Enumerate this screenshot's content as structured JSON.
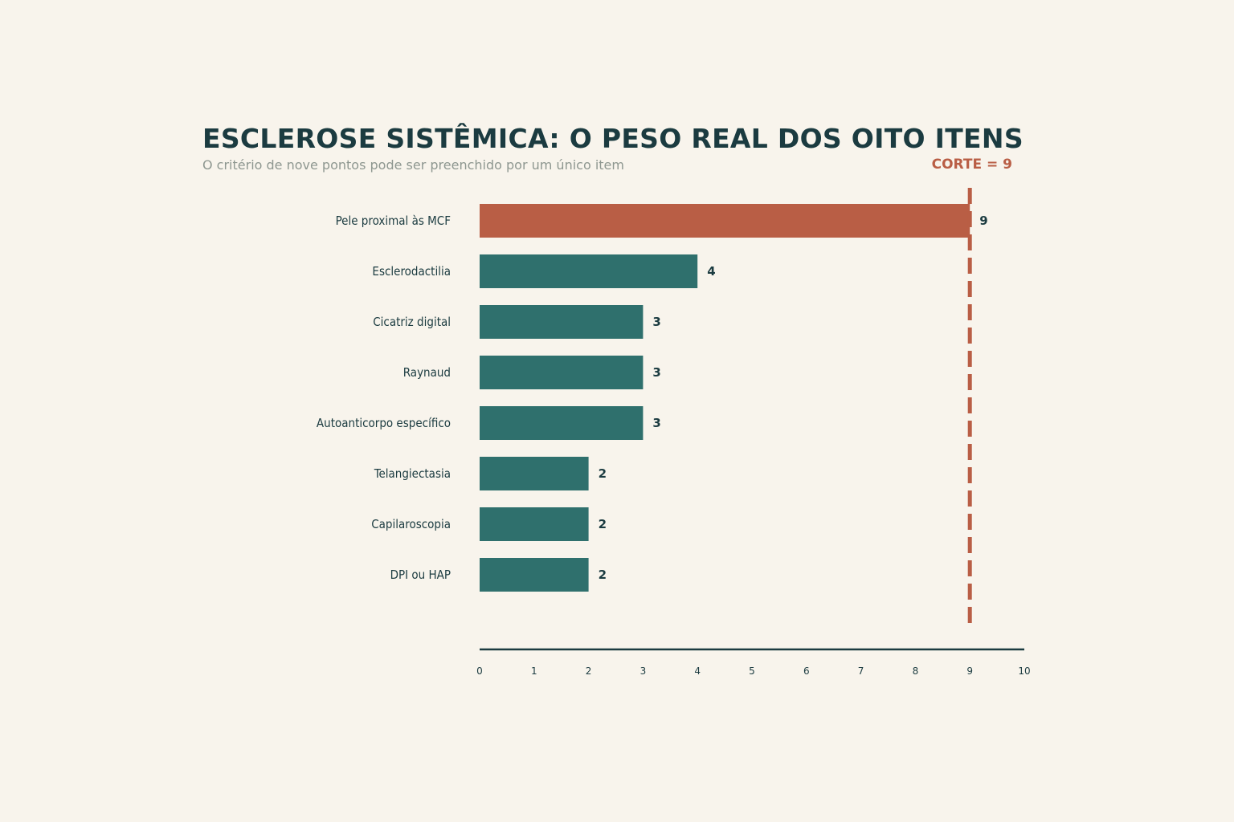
{
  "title": "ESCLEROSE SISTÊMICA: O PESO REAL DOS OITO ITENS",
  "subtitle": "O critério de nove pontos pode ser preenchido por um único item",
  "colors": {
    "background": "#f8f4ec",
    "highlight_bar": "#b95e45",
    "bar": "#2f706d",
    "text_dark": "#1b3b40",
    "subtitle": "#8e9790",
    "cutoff": "#b95e45"
  },
  "chart_data": {
    "type": "bar",
    "orientation": "horizontal",
    "title": "ESCLEROSE SISTÊMICA: O PESO REAL DOS OITO ITENS",
    "subtitle": "O critério de nove pontos pode ser preenchido por um único item",
    "categories": [
      "Pele proximal às MCF",
      "Esclerodactilia",
      "Cicatriz digital",
      "Raynaud",
      "Autoanticorpo específico",
      "Telangiectasia",
      "Capilaroscopia",
      "DPI ou HAP"
    ],
    "values": [
      9,
      4,
      3,
      3,
      3,
      2,
      2,
      2
    ],
    "highlight_index": 0,
    "data_labels": [
      "9",
      "4",
      "3",
      "3",
      "3",
      "2",
      "2",
      "2"
    ],
    "xlim": [
      0,
      10
    ],
    "xticks": [
      0,
      1,
      2,
      3,
      4,
      5,
      6,
      7,
      8,
      9,
      10
    ],
    "xlabel": "",
    "ylabel": "",
    "grid": false,
    "reference_line": {
      "value": 9,
      "label": "CORTE = 9",
      "style": "dashed"
    }
  }
}
